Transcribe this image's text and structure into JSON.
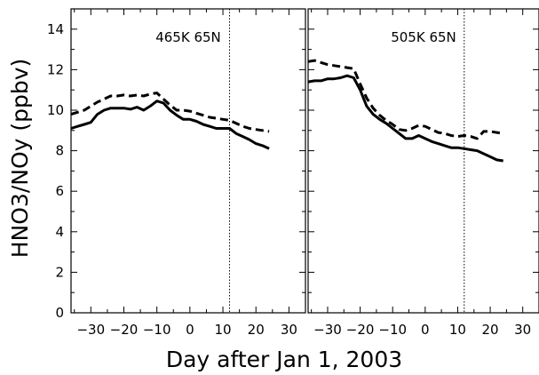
{
  "chart_data": {
    "type": "line",
    "xlabel": "Day after Jan 1, 2003",
    "ylabel": "HNO3/NOy  (ppbv)",
    "ylim": [
      0,
      15
    ],
    "yticks": [
      "0",
      "2",
      "4",
      "6",
      "8",
      "10",
      "12",
      "14"
    ],
    "xticks": [
      "−30",
      "−20",
      "−10",
      "0",
      "10",
      "20",
      "30"
    ],
    "xlim": [
      -36,
      35
    ],
    "grid": false,
    "legend": "none",
    "reference_line_x": 12,
    "panels": [
      {
        "label": "465K  65N",
        "series": [
          {
            "style": "solid",
            "x": [
              -36,
              -34,
              -32,
              -30,
              -28,
              -26,
              -24,
              -22,
              -20,
              -18,
              -16,
              -14,
              -12,
              -10,
              -8,
              -6,
              -4,
              -2,
              0,
              2,
              4,
              6,
              8,
              10,
              12,
              14,
              16,
              18,
              20,
              22,
              24
            ],
            "y": [
              9.1,
              9.2,
              9.3,
              9.4,
              9.8,
              10.0,
              10.1,
              10.1,
              10.1,
              10.05,
              10.15,
              10.0,
              10.2,
              10.45,
              10.35,
              10.0,
              9.75,
              9.55,
              9.55,
              9.45,
              9.3,
              9.2,
              9.1,
              9.1,
              9.1,
              8.85,
              8.7,
              8.55,
              8.35,
              8.25,
              8.1
            ]
          },
          {
            "style": "dashed",
            "x": [
              -36,
              -34,
              -32,
              -30,
              -28,
              -26,
              -24,
              -22,
              -20,
              -18,
              -16,
              -14,
              -12,
              -10,
              -8,
              -6,
              -4,
              -2,
              0,
              2,
              4,
              6,
              8,
              10,
              12,
              14,
              16,
              18,
              20,
              22,
              24
            ],
            "y": [
              9.8,
              9.9,
              10.0,
              10.2,
              10.4,
              10.55,
              10.7,
              10.7,
              10.75,
              10.7,
              10.75,
              10.7,
              10.8,
              10.85,
              10.55,
              10.25,
              10.0,
              10.0,
              9.95,
              9.85,
              9.75,
              9.65,
              9.6,
              9.55,
              9.5,
              9.35,
              9.2,
              9.1,
              9.05,
              9.0,
              8.95
            ]
          }
        ]
      },
      {
        "label": "505K  65N",
        "series": [
          {
            "style": "solid",
            "x": [
              -36,
              -34,
              -32,
              -30,
              -28,
              -26,
              -24,
              -22,
              -20,
              -18,
              -16,
              -14,
              -12,
              -10,
              -8,
              -6,
              -4,
              -2,
              0,
              2,
              4,
              6,
              8,
              10,
              12,
              14,
              16,
              18,
              20,
              22,
              24
            ],
            "y": [
              11.4,
              11.45,
              11.45,
              11.55,
              11.55,
              11.6,
              11.7,
              11.6,
              11.0,
              10.2,
              9.8,
              9.55,
              9.35,
              9.1,
              8.85,
              8.6,
              8.6,
              8.75,
              8.6,
              8.45,
              8.35,
              8.25,
              8.15,
              8.15,
              8.1,
              8.05,
              8.0,
              7.85,
              7.7,
              7.55,
              7.5
            ]
          },
          {
            "style": "dashed",
            "x": [
              -36,
              -34,
              -32,
              -30,
              -28,
              -26,
              -24,
              -22,
              -20,
              -18,
              -16,
              -14,
              -12,
              -10,
              -8,
              -6,
              -4,
              -2,
              0,
              2,
              4,
              6,
              8,
              10,
              12,
              14,
              16,
              18,
              20,
              22,
              24
            ],
            "y": [
              12.4,
              12.45,
              12.35,
              12.25,
              12.2,
              12.15,
              12.1,
              12.05,
              11.3,
              10.6,
              10.1,
              9.75,
              9.5,
              9.3,
              9.05,
              9.0,
              9.1,
              9.25,
              9.2,
              9.05,
              8.9,
              8.85,
              8.75,
              8.7,
              8.75,
              8.7,
              8.6,
              8.95,
              8.95,
              8.9,
              8.85
            ]
          }
        ]
      }
    ]
  }
}
